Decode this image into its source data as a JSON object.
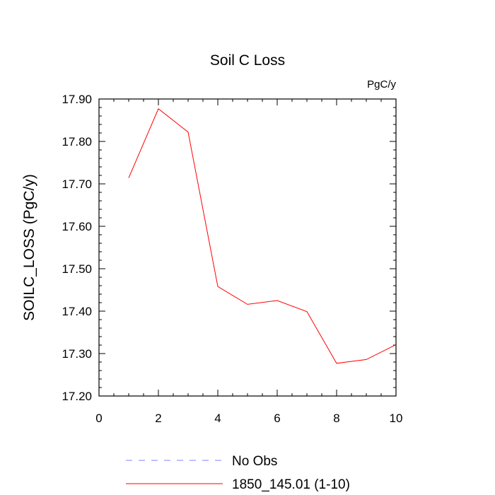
{
  "chart_data": {
    "type": "line",
    "title": "Soil C Loss",
    "units": "PgC/y",
    "xlabel": "",
    "ylabel": "SOILC_LOSS  (PgC/y)",
    "xlim": [
      0,
      10
    ],
    "ylim": [
      17.2,
      17.9
    ],
    "x_ticks": [
      "0",
      "2",
      "4",
      "6",
      "8",
      "10"
    ],
    "y_ticks": [
      "17.20",
      "17.30",
      "17.40",
      "17.50",
      "17.60",
      "17.70",
      "17.80",
      "17.90"
    ],
    "grid": false,
    "legend_position": "bottom",
    "series": [
      {
        "name": "1850_145.01 (1-10)",
        "color": "#ff0000",
        "style": "solid",
        "x": [
          1,
          2,
          3,
          4,
          5,
          6,
          7,
          8,
          9,
          10
        ],
        "y": [
          17.714,
          17.877,
          17.822,
          17.458,
          17.416,
          17.425,
          17.399,
          17.277,
          17.286,
          17.321
        ]
      }
    ],
    "legend": [
      {
        "label": "No Obs",
        "color": "#8080ff",
        "style": "dashed"
      },
      {
        "label": "1850_145.01 (1-10)",
        "color": "#ff0000",
        "style": "solid"
      }
    ]
  }
}
